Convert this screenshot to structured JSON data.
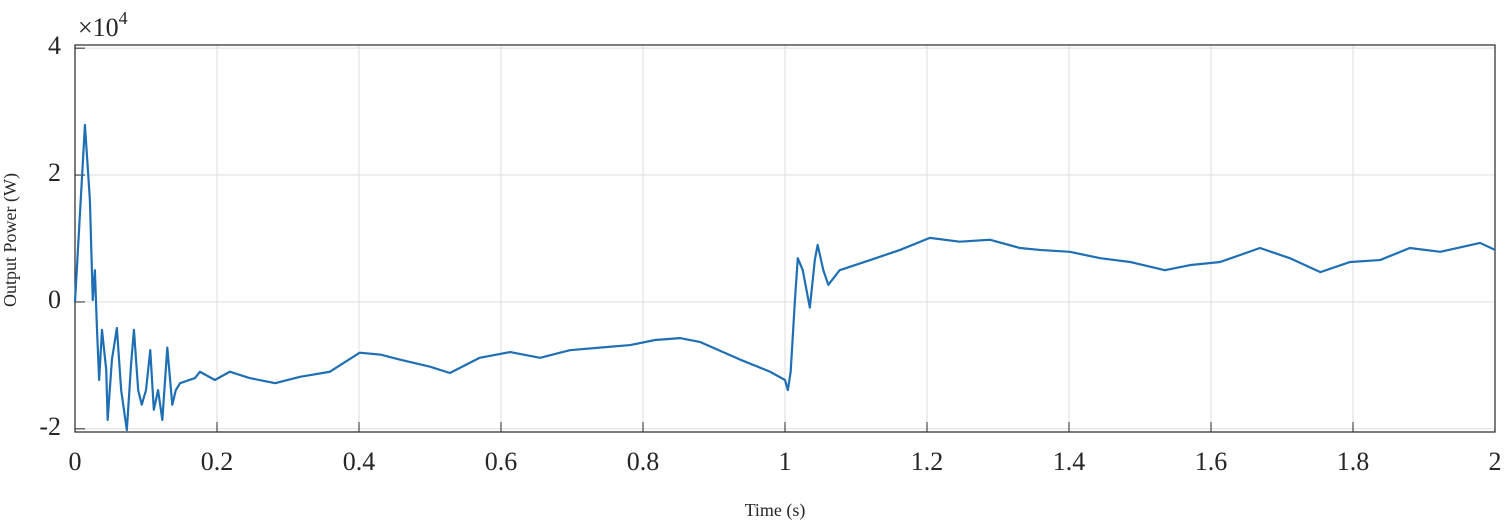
{
  "chart_data": {
    "type": "line",
    "xlabel": "Time (s)",
    "ylabel": "Output Power (W)",
    "y_multiplier": "×10",
    "y_multiplier_exponent": "4",
    "xlim": [
      0,
      2
    ],
    "ylim": [
      -20500,
      40500
    ],
    "xticks": [
      0,
      0.2,
      0.4,
      0.6,
      0.8,
      1,
      1.2,
      1.4,
      1.6,
      1.8,
      2
    ],
    "yticks": [
      {
        "value": -20000,
        "label": "-2"
      },
      {
        "value": 0,
        "label": "0"
      },
      {
        "value": 20000,
        "label": "2"
      },
      {
        "value": 40000,
        "label": "4"
      }
    ],
    "grid": true,
    "series": [
      {
        "color": "#1f6fb4",
        "x": [
          0,
          0.014,
          0.021,
          0.025,
          0.028,
          0.031,
          0.034,
          0.038,
          0.044,
          0.046,
          0.052,
          0.059,
          0.065,
          0.073,
          0.079,
          0.083,
          0.089,
          0.094,
          0.1,
          0.106,
          0.111,
          0.117,
          0.123,
          0.13,
          0.137,
          0.142,
          0.148,
          0.169,
          0.176,
          0.197,
          0.218,
          0.246,
          0.282,
          0.317,
          0.359,
          0.401,
          0.43,
          0.458,
          0.5,
          0.528,
          0.57,
          0.613,
          0.655,
          0.697,
          0.739,
          0.782,
          0.817,
          0.852,
          0.88,
          0.937,
          0.979,
          1.0,
          1.004,
          1.008,
          1.014,
          1.018,
          1.025,
          1.035,
          1.042,
          1.046,
          1.054,
          1.061,
          1.077,
          1.12,
          1.162,
          1.204,
          1.246,
          1.289,
          1.331,
          1.359,
          1.401,
          1.444,
          1.486,
          1.535,
          1.57,
          1.613,
          1.669,
          1.711,
          1.754,
          1.796,
          1.838,
          1.88,
          1.923,
          1.979,
          2.0
        ],
        "values": [
          0,
          27900,
          16000,
          300,
          5000,
          -4400,
          -12300,
          -4400,
          -10700,
          -18600,
          -9100,
          -4100,
          -13900,
          -20200,
          -9800,
          -4400,
          -13900,
          -16200,
          -13900,
          -7600,
          -17000,
          -13900,
          -18600,
          -7200,
          -16200,
          -13900,
          -12800,
          -12000,
          -11000,
          -12300,
          -11000,
          -12000,
          -12800,
          -11800,
          -11000,
          -8000,
          -8300,
          -9100,
          -10200,
          -11200,
          -8800,
          -7900,
          -8800,
          -7600,
          -7200,
          -6800,
          -6000,
          -5700,
          -6300,
          -9100,
          -11000,
          -12300,
          -13900,
          -11000,
          300,
          6900,
          5000,
          -900,
          6600,
          9000,
          5000,
          2700,
          5000,
          6600,
          8200,
          10100,
          9500,
          9800,
          8500,
          8200,
          7900,
          6900,
          6300,
          5000,
          5800,
          6300,
          8500,
          6900,
          4700,
          6300,
          6600,
          8500,
          7900,
          9300,
          8200
        ]
      }
    ]
  }
}
